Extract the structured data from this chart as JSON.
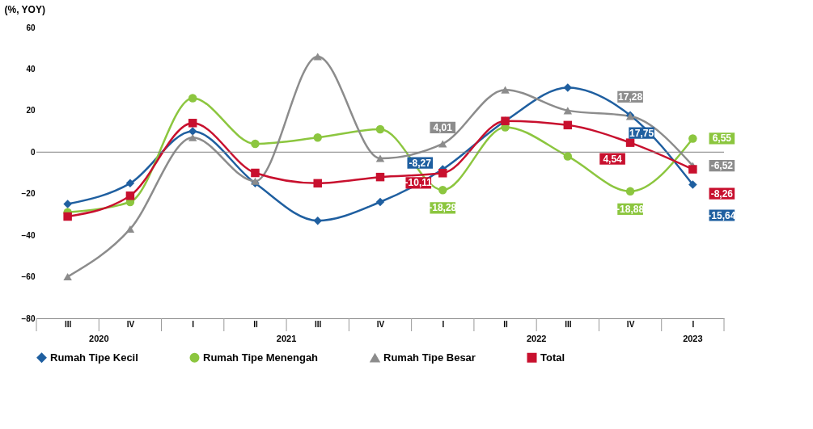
{
  "chart_data": {
    "type": "line",
    "ylabel": "(%, YOY)",
    "categories": [
      "III",
      "IV",
      "I",
      "II",
      "III",
      "IV",
      "I",
      "II",
      "III",
      "IV",
      "I"
    ],
    "ylim": [
      -80,
      60
    ],
    "yticks": [
      -80,
      -60,
      -40,
      -20,
      0,
      20,
      40,
      60
    ],
    "grid": false,
    "ref_lines": [
      {
        "axis": "y",
        "value": 0,
        "color": "#808080"
      }
    ],
    "legend": "bottom",
    "line_style": "solid",
    "series": [
      {
        "name": "Rumah Tipe Kecil",
        "color": "#1f5fa0",
        "marker": "diamond",
        "values": [
          -25,
          -15,
          10,
          -15,
          -33,
          -24,
          -8.27,
          15,
          31,
          17.75,
          -15.64
        ],
        "value_labels": [
          null,
          null,
          null,
          null,
          null,
          null,
          "-8,27",
          null,
          null,
          "17,75",
          "-15,64"
        ]
      },
      {
        "name": "Rumah Tipe Menengah",
        "color": "#8cc63f",
        "marker": "circle",
        "values": [
          -29,
          -24,
          26,
          4,
          7,
          11,
          -18.28,
          12,
          -2,
          -18.88,
          6.55
        ],
        "value_labels": [
          null,
          null,
          null,
          null,
          null,
          null,
          "-18,28",
          null,
          null,
          "-18,88",
          "6,55"
        ]
      },
      {
        "name": "Rumah Tipe Besar",
        "color": "#8c8c8c",
        "marker": "triangle",
        "values": [
          -60,
          -37,
          7,
          -14,
          46,
          -3,
          4.01,
          30,
          20,
          17.28,
          -6.52
        ],
        "value_labels": [
          null,
          null,
          null,
          null,
          null,
          null,
          "4,01",
          null,
          null,
          "17,28",
          "-6,52"
        ]
      },
      {
        "name": "Total",
        "color": "#c8102e",
        "marker": "square",
        "values": [
          -31,
          -21,
          14,
          -10,
          -15,
          -12,
          -10.11,
          15,
          13,
          4.54,
          -8.26
        ],
        "value_labels": [
          null,
          null,
          null,
          null,
          null,
          null,
          "-10,11",
          null,
          null,
          "4,54",
          "-8,26"
        ]
      }
    ],
    "annotations": [
      "2020",
      "2021",
      "2022",
      "2023"
    ]
  }
}
